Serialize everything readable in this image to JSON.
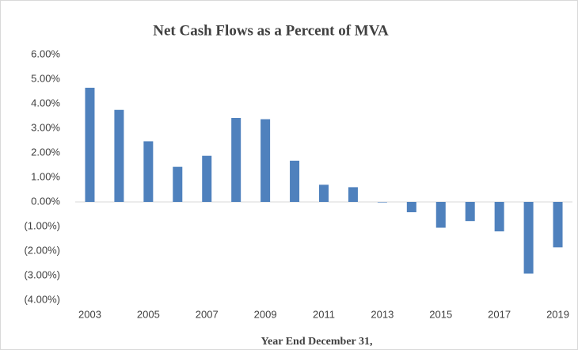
{
  "chart_data": {
    "type": "bar",
    "title": "Net Cash Flows as a Percent of MVA",
    "x_label": "Year End December 31,",
    "categories": [
      "2003",
      null,
      "2005",
      null,
      "2007",
      null,
      "2009",
      null,
      "2011",
      null,
      "2013",
      null,
      "2015",
      null,
      "2017",
      null,
      "2019"
    ],
    "values": [
      4.65,
      3.75,
      2.47,
      1.43,
      1.88,
      3.42,
      3.37,
      1.68,
      0.7,
      0.6,
      -0.02,
      -0.42,
      -1.05,
      -0.78,
      -1.2,
      -2.92,
      -1.85
    ],
    "color": "#4f81bd",
    "ylim": [
      -4,
      6
    ],
    "yticks": [
      {
        "value": -4,
        "label": "(4.00%)"
      },
      {
        "value": -3,
        "label": "(3.00%)"
      },
      {
        "value": -2,
        "label": "(2.00%)"
      },
      {
        "value": -1,
        "label": "(1.00%)"
      },
      {
        "value": 0,
        "label": "0.00%"
      },
      {
        "value": 1,
        "label": "1.00%"
      },
      {
        "value": 2,
        "label": "2.00%"
      },
      {
        "value": 3,
        "label": "3.00%"
      },
      {
        "value": 4,
        "label": "4.00%"
      },
      {
        "value": 5,
        "label": "5.00%"
      },
      {
        "value": 6,
        "label": "6.00%"
      }
    ],
    "grid": false
  }
}
